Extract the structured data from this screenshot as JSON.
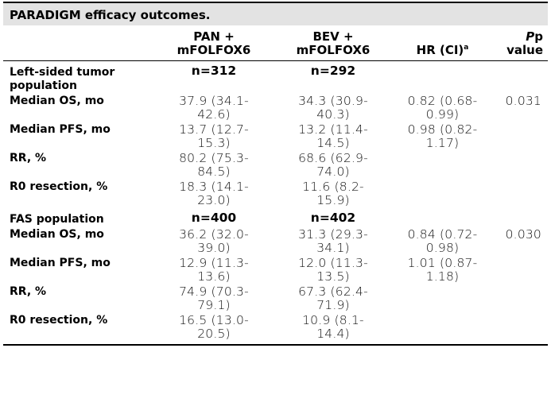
{
  "title": "PARADIGM efficacy outcomes.",
  "headers": {
    "col0": "",
    "pan": [
      "PAN +",
      "mFOLFOX6"
    ],
    "bev": [
      "BEV +",
      "mFOLFOX6"
    ],
    "hr": "HR (CI)",
    "hr_sup": "a",
    "p_italic": "P",
    "p_rest": "p",
    "p_value": "value"
  },
  "sections": [
    {
      "label": "Left-sided tumor population",
      "pan_n": "n=312",
      "bev_n": "n=292",
      "rows": [
        {
          "label": "Median OS, mo",
          "pan": [
            "37.9 (34.1-",
            "42.6)"
          ],
          "bev": [
            "34.3 (30.9-",
            "40.3)"
          ],
          "hr": [
            "0.82 (0.68-",
            "0.99)"
          ],
          "p": "0.031"
        },
        {
          "label": "Median PFS, mo",
          "pan": [
            "13.7 (12.7-",
            "15.3)"
          ],
          "bev": [
            "13.2 (11.4-",
            "14.5)"
          ],
          "hr": [
            "0.98 (0.82-",
            "1.17)"
          ],
          "p": ""
        },
        {
          "label": "RR, %",
          "pan": [
            "80.2 (75.3-",
            "84.5)"
          ],
          "bev": [
            "68.6 (62.9-",
            "74.0)"
          ],
          "hr": [
            "",
            ""
          ],
          "p": ""
        },
        {
          "label": "R0 resection, %",
          "pan": [
            "18.3 (14.1-",
            "23.0)"
          ],
          "bev": [
            "11.6 (8.2-",
            "15.9)"
          ],
          "hr": [
            "",
            ""
          ],
          "p": ""
        }
      ]
    },
    {
      "label": "FAS population",
      "pan_n": "n=400",
      "bev_n": "n=402",
      "rows": [
        {
          "label": "Median OS, mo",
          "pan": [
            "36.2 (32.0-",
            "39.0)"
          ],
          "bev": [
            "31.3 (29.3-",
            "34.1)"
          ],
          "hr": [
            "0.84 (0.72-",
            "0.98)"
          ],
          "p": "0.030"
        },
        {
          "label": "Median PFS, mo",
          "pan": [
            "12.9 (11.3-",
            "13.6)"
          ],
          "bev": [
            "12.0 (11.3-",
            "13.5)"
          ],
          "hr": [
            "1.01 (0.87-",
            "1.18)"
          ],
          "p": ""
        },
        {
          "label": "RR, %",
          "pan": [
            "74.9 (70.3-",
            "79.1)"
          ],
          "bev": [
            "67.3 (62.4-",
            "71.9)"
          ],
          "hr": [
            "",
            ""
          ],
          "p": ""
        },
        {
          "label": "R0 resection, %",
          "pan": [
            "16.5 (13.0-",
            "20.5)"
          ],
          "bev": [
            "10.9 (8.1-",
            "14.4)"
          ],
          "hr": [
            "",
            ""
          ],
          "p": ""
        }
      ]
    }
  ]
}
